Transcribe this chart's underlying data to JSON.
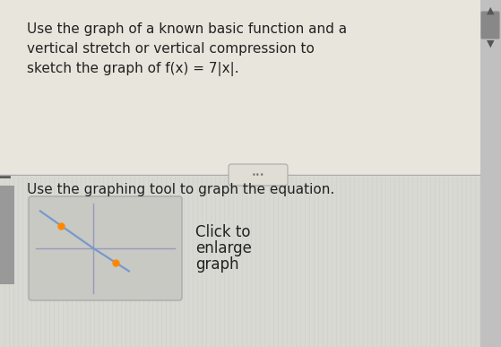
{
  "bg_color_top": "#e8e5dc",
  "bg_color_bottom": "#dcddd6",
  "text_line1": "Use the graph of a known basic function and a",
  "text_line2": "vertical stretch or vertical compression to",
  "text_line3": "sketch the graph of f(x) = 7|x|.",
  "instruction_text": "Use the graphing tool to graph the equation.",
  "click_text_lines": [
    "Click to",
    "enlarge",
    "graph"
  ],
  "dots_text": "...",
  "graph_box_color": "#c8c8c8",
  "graph_line_color": "#7799cc",
  "graph_axis_color": "#9999bb",
  "graph_dot_color": "#ff8800",
  "scrollbar_track": "#c8c8c8",
  "scrollbar_thumb": "#999999",
  "left_arrow_color": "#555555",
  "divider_color": "#aaaaaa",
  "text_color": "#222222"
}
